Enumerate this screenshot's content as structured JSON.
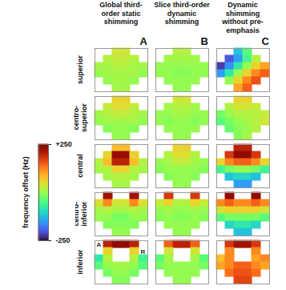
{
  "chart_data": {
    "type": "heatmap",
    "rows": [
      "superior",
      "centro-superior",
      "central",
      "centro-inferior",
      "inferior"
    ],
    "columns": [
      {
        "title": "Global third-order static shimming",
        "letter": "A",
        "cells": [
          [
            [
              null,
              null,
              40,
              40,
              null,
              null
            ],
            [
              null,
              20,
              30,
              30,
              20,
              null
            ],
            [
              10,
              10,
              20,
              20,
              10,
              10
            ],
            [
              0,
              10,
              10,
              10,
              10,
              0
            ],
            [
              null,
              0,
              10,
              10,
              0,
              null
            ],
            [
              null,
              null,
              10,
              10,
              null,
              null
            ]
          ],
          [
            [
              null,
              null,
              60,
              60,
              null,
              null
            ],
            [
              null,
              30,
              50,
              50,
              30,
              null
            ],
            [
              10,
              20,
              30,
              30,
              20,
              10
            ],
            [
              0,
              10,
              10,
              10,
              10,
              0
            ],
            [
              null,
              -10,
              0,
              0,
              -10,
              null
            ],
            [
              null,
              null,
              0,
              0,
              null,
              null
            ]
          ],
          [
            [
              null,
              null,
              80,
              80,
              null,
              null
            ],
            [
              null,
              60,
              230,
              230,
              60,
              null
            ],
            [
              20,
              80,
              200,
              200,
              80,
              20
            ],
            [
              10,
              20,
              60,
              60,
              20,
              10
            ],
            [
              null,
              10,
              20,
              20,
              10,
              null
            ],
            [
              null,
              null,
              10,
              10,
              null,
              null
            ]
          ],
          [
            [
              null,
              220,
              null,
              null,
              220,
              null
            ],
            [
              50,
              120,
              40,
              40,
              120,
              50
            ],
            [
              10,
              20,
              10,
              10,
              20,
              10
            ],
            [
              0,
              0,
              -20,
              -20,
              0,
              0
            ],
            [
              null,
              -10,
              -10,
              -10,
              -10,
              null
            ],
            [
              null,
              null,
              0,
              0,
              null,
              null
            ]
          ],
          [
            [
              null,
              200,
              240,
              240,
              200,
              null
            ],
            [
              null,
              60,
              null,
              null,
              60,
              null
            ],
            [
              -80,
              20,
              null,
              null,
              20,
              -60
            ],
            [
              -40,
              0,
              10,
              10,
              0,
              -40
            ],
            [
              null,
              -20,
              0,
              0,
              -20,
              null
            ],
            [
              null,
              null,
              -10,
              -10,
              null,
              null
            ]
          ]
        ]
      },
      {
        "title": "Slice third-order dynamic shimming",
        "letter": "B",
        "cells": [
          [
            [
              null,
              null,
              20,
              20,
              null,
              null
            ],
            [
              null,
              10,
              10,
              10,
              10,
              null
            ],
            [
              0,
              0,
              0,
              0,
              0,
              0
            ],
            [
              0,
              0,
              -10,
              -10,
              0,
              0
            ],
            [
              null,
              0,
              0,
              0,
              0,
              null
            ],
            [
              null,
              null,
              0,
              0,
              null,
              null
            ]
          ],
          [
            [
              null,
              null,
              40,
              40,
              null,
              null
            ],
            [
              null,
              10,
              20,
              20,
              10,
              null
            ],
            [
              0,
              0,
              10,
              10,
              0,
              0
            ],
            [
              0,
              -10,
              0,
              0,
              -10,
              0
            ],
            [
              null,
              0,
              0,
              0,
              0,
              null
            ],
            [
              null,
              null,
              0,
              0,
              null,
              null
            ]
          ],
          [
            [
              null,
              null,
              60,
              60,
              null,
              null
            ],
            [
              null,
              20,
              50,
              50,
              20,
              null
            ],
            [
              0,
              10,
              30,
              30,
              10,
              0
            ],
            [
              -10,
              0,
              0,
              0,
              0,
              -10
            ],
            [
              null,
              -10,
              0,
              0,
              -10,
              null
            ],
            [
              null,
              null,
              0,
              0,
              null,
              null
            ]
          ],
          [
            [
              null,
              180,
              null,
              null,
              180,
              null
            ],
            [
              30,
              60,
              20,
              20,
              60,
              30
            ],
            [
              0,
              10,
              0,
              0,
              10,
              0
            ],
            [
              -10,
              0,
              -10,
              -10,
              0,
              -10
            ],
            [
              null,
              0,
              0,
              0,
              0,
              null
            ],
            [
              null,
              null,
              0,
              0,
              null,
              null
            ]
          ],
          [
            [
              null,
              150,
              200,
              200,
              150,
              null
            ],
            [
              null,
              40,
              null,
              null,
              40,
              null
            ],
            [
              -40,
              10,
              null,
              null,
              10,
              -40
            ],
            [
              -20,
              0,
              0,
              0,
              0,
              -20
            ],
            [
              null,
              0,
              0,
              0,
              0,
              null
            ],
            [
              null,
              null,
              0,
              0,
              null,
              null
            ]
          ]
        ]
      },
      {
        "title": "Dynamic shimming without pre-emphasis",
        "letter": "C",
        "cells": [
          [
            [
              null,
              null,
              -120,
              -40,
              null,
              null
            ],
            [
              null,
              -200,
              -150,
              -60,
              20,
              null
            ],
            [
              -220,
              -160,
              -80,
              0,
              60,
              100
            ],
            [
              -150,
              -80,
              0,
              60,
              120,
              150
            ],
            [
              null,
              0,
              60,
              120,
              160,
              null
            ],
            [
              null,
              null,
              100,
              150,
              null,
              null
            ]
          ],
          [
            [
              null,
              null,
              60,
              60,
              null,
              null
            ],
            [
              null,
              20,
              40,
              40,
              30,
              null
            ],
            [
              -20,
              0,
              20,
              20,
              20,
              30
            ],
            [
              -40,
              -20,
              0,
              10,
              20,
              40
            ],
            [
              null,
              -30,
              -10,
              0,
              20,
              null
            ],
            [
              null,
              null,
              -10,
              10,
              null,
              null
            ]
          ],
          [
            [
              null,
              null,
              200,
              200,
              null,
              null
            ],
            [
              null,
              180,
              250,
              250,
              180,
              null
            ],
            [
              60,
              120,
              150,
              150,
              120,
              60
            ],
            [
              -60,
              -20,
              0,
              0,
              -20,
              -60
            ],
            [
              null,
              -120,
              -100,
              -100,
              -120,
              null
            ],
            [
              null,
              null,
              -150,
              -150,
              null,
              null
            ]
          ],
          [
            [
              null,
              250,
              null,
              null,
              250,
              null
            ],
            [
              120,
              150,
              120,
              120,
              150,
              120
            ],
            [
              40,
              60,
              60,
              60,
              60,
              40
            ],
            [
              -40,
              -20,
              -20,
              -20,
              -20,
              -40
            ],
            [
              null,
              -100,
              -80,
              -80,
              -100,
              null
            ],
            [
              null,
              null,
              -120,
              -120,
              null,
              null
            ]
          ],
          [
            [
              null,
              180,
              220,
              220,
              180,
              null
            ],
            [
              null,
              120,
              null,
              null,
              120,
              null
            ],
            [
              80,
              120,
              null,
              null,
              100,
              120
            ],
            [
              100,
              120,
              150,
              150,
              120,
              100
            ],
            [
              null,
              140,
              160,
              160,
              140,
              null
            ],
            [
              null,
              null,
              170,
              170,
              null,
              null
            ]
          ]
        ]
      }
    ],
    "annotations": [
      {
        "text": "A",
        "column": 0,
        "row": 4,
        "cell": [
          0,
          0
        ]
      },
      {
        "text": "R",
        "column": 0,
        "row": 4,
        "cell": [
          1,
          5
        ]
      }
    ],
    "colorbar": {
      "label": "frequency offset (Hz)",
      "lim": [
        -250,
        250
      ],
      "ticks": [
        {
          "value": 250,
          "label": "+250"
        },
        -250
      ]
    }
  }
}
